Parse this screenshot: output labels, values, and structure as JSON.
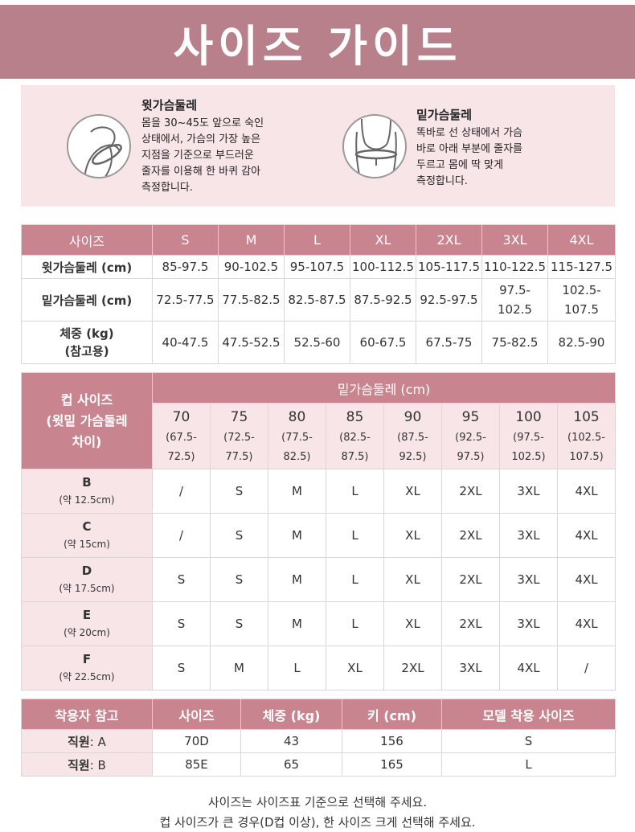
{
  "banner": {
    "title": "사이즈 가이드"
  },
  "measure": {
    "upper": {
      "icon": "upper-bust-figure-icon",
      "title": "윗가슴둘레",
      "lines": [
        "몸을 30~45도 앞으로 숙인",
        "상태에서, 가슴의 가장 높은",
        "지점을 기준으로 부드러운",
        "줄자를 이용해 한 바퀴 감아",
        "측정합니다."
      ]
    },
    "under": {
      "icon": "under-bust-figure-icon",
      "title": "밑가슴둘레",
      "lines": [
        "똑바로 선 상태에서 가슴",
        "바로 아래 부분에 줄자를",
        "두르고 몸에 딱 맞게",
        "측정합니다."
      ]
    }
  },
  "size_table": {
    "header": [
      "사이즈",
      "S",
      "M",
      "L",
      "XL",
      "2XL",
      "3XL",
      "4XL"
    ],
    "rows": [
      {
        "label": "윗가슴둘레 (cm)",
        "values": [
          "85-97.5",
          "90-102.5",
          "95-107.5",
          "100-112.5",
          "105-117.5",
          "110-122.5",
          "115-127.5"
        ]
      },
      {
        "label": "밑가슴둘레 (cm)",
        "values": [
          "72.5-77.5",
          "77.5-82.5",
          "82.5-87.5",
          "87.5-92.5",
          "92.5-97.5",
          "97.5-\n102.5",
          "102.5-\n107.5"
        ]
      },
      {
        "label": "체중 (kg)\n(참고용)",
        "values": [
          "40-47.5",
          "47.5-52.5",
          "52.5-60",
          "60-67.5",
          "67.5-75",
          "75-82.5",
          "82.5-90"
        ]
      }
    ]
  },
  "cup_table": {
    "corner": "컵 사이즈\n(윗밑 가슴둘레\n차이)",
    "under_label": "밑가슴둘레 (cm)",
    "bands": [
      {
        "band": "70",
        "range": "(67.5-",
        "range2": "72.5)"
      },
      {
        "band": "75",
        "range": "(72.5-",
        "range2": "77.5)"
      },
      {
        "band": "80",
        "range": "(77.5-",
        "range2": "82.5)"
      },
      {
        "band": "85",
        "range": "(82.5-",
        "range2": "87.5)"
      },
      {
        "band": "90",
        "range": "(87.5-",
        "range2": "92.5)"
      },
      {
        "band": "95",
        "range": "(92.5-",
        "range2": "97.5)"
      },
      {
        "band": "100",
        "range": "(97.5-",
        "range2": "102.5)"
      },
      {
        "band": "105",
        "range": "(102.5-",
        "range2": "107.5)"
      }
    ],
    "rows": [
      {
        "cup": "B",
        "diff": "(약 12.5cm)",
        "values": [
          "/",
          "S",
          "M",
          "L",
          "XL",
          "2XL",
          "3XL",
          "4XL"
        ]
      },
      {
        "cup": "C",
        "diff": "(약 15cm)",
        "values": [
          "/",
          "S",
          "M",
          "L",
          "XL",
          "2XL",
          "3XL",
          "4XL"
        ]
      },
      {
        "cup": "D",
        "diff": "(약 17.5cm)",
        "values": [
          "S",
          "S",
          "M",
          "L",
          "XL",
          "2XL",
          "3XL",
          "4XL"
        ]
      },
      {
        "cup": "E",
        "diff": "(약 20cm)",
        "values": [
          "S",
          "S",
          "M",
          "L",
          "XL",
          "2XL",
          "3XL",
          "4XL"
        ]
      },
      {
        "cup": "F",
        "diff": "(약 22.5cm)",
        "values": [
          "S",
          "M",
          "L",
          "XL",
          "2XL",
          "3XL",
          "4XL",
          "/"
        ]
      }
    ]
  },
  "wearer_table": {
    "header": [
      "착용자 참고",
      "사이즈",
      "체중 (kg)",
      "키 (cm)",
      "모델 착용 사이즈"
    ],
    "rows": [
      {
        "name": "직원",
        "suffix": ": A",
        "size": "70D",
        "weight": "43",
        "height": "156",
        "model_size": "S"
      },
      {
        "name": "직원",
        "suffix": ": B",
        "size": "85E",
        "weight": "65",
        "height": "165",
        "model_size": "L"
      }
    ]
  },
  "footer": {
    "line1": "사이즈는 사이즈표 기준으로 선택해 주세요.",
    "line2": "컵 사이즈가 큰 경우(D컵 이상), 한 사이즈 크게 선택해 주세요."
  },
  "colors": {
    "banner": "#b8808a",
    "header": "#c8848f",
    "light_pink": "#f8e5e8"
  }
}
